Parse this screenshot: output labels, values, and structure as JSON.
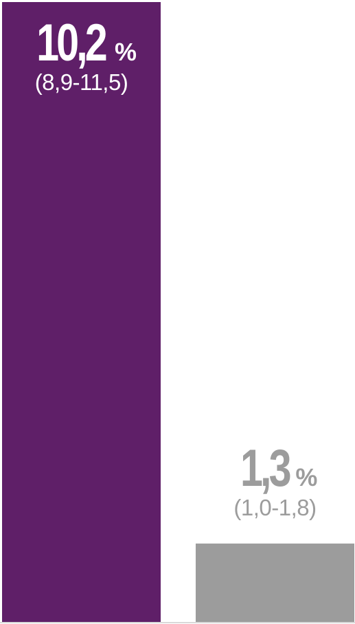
{
  "chart_data": {
    "type": "bar",
    "unit": "%",
    "ylim": [
      0,
      10.2
    ],
    "grid": false,
    "bars": [
      {
        "value": 10.2,
        "value_label": "10,2",
        "ci_label": "(8,9-11,5)",
        "color": "#5f1f68",
        "label_color": "#ffffff"
      },
      {
        "value": 1.3,
        "value_label": "1,3",
        "ci_label": "(1,0-1,8)",
        "color": "#9c9c9c",
        "label_color": "#9c9c9c"
      }
    ]
  }
}
